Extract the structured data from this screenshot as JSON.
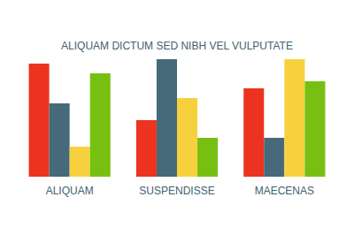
{
  "chart_data": {
    "type": "bar",
    "title": "ALIQUAM DICTUM SED NIBH VEL VULPUTATE",
    "categories": [
      "ALIQUAM",
      "SUSPENDISSE",
      "MAECENAS"
    ],
    "series": [
      {
        "color": "#ec3320",
        "values": [
          128,
          64,
          100
        ]
      },
      {
        "color": "#466a79",
        "values": [
          83,
          133,
          44
        ]
      },
      {
        "color": "#f7d13d",
        "values": [
          34,
          89,
          133
        ]
      },
      {
        "color": "#77c012",
        "values": [
          117,
          44,
          108
        ]
      }
    ],
    "ylim": [
      0,
      133
    ],
    "grid": false,
    "tick_labels": "x",
    "legend": "none"
  }
}
